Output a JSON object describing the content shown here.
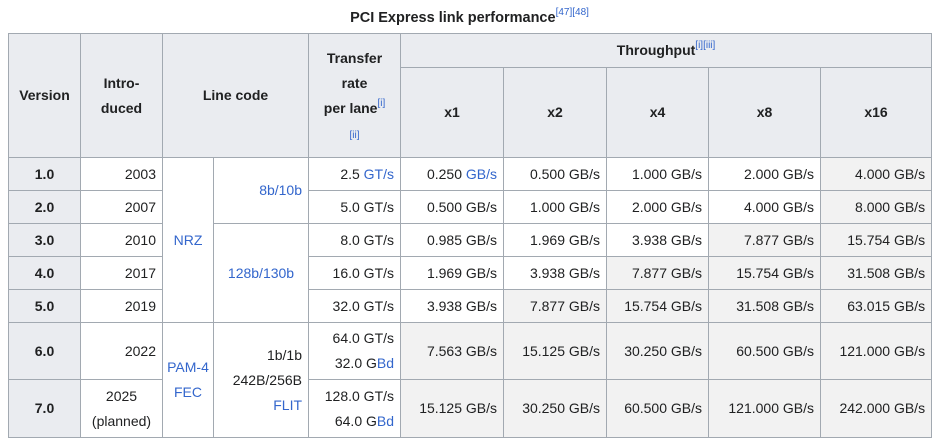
{
  "title": "PCI Express link performance",
  "title_refs": [
    "[47]",
    "[48]"
  ],
  "headers": {
    "version": "Version",
    "introduced": [
      "Intro-",
      "duced"
    ],
    "line_code": "Line code",
    "transfer_rate": [
      "Transfer",
      "rate",
      "per lane"
    ],
    "transfer_rate_refs": [
      "[i]",
      "[ii]"
    ],
    "throughput": "Throughput",
    "throughput_refs": [
      "[i]",
      "[iii]"
    ],
    "lanes": [
      "x1",
      "x2",
      "x4",
      "x8",
      "x16"
    ]
  },
  "line_codes": {
    "nrz": "NRZ",
    "pam": [
      "PAM-4",
      "FEC"
    ],
    "enc_8b10b": "8b/10b",
    "enc_128b130b": "128b/130b",
    "enc_flit": [
      "1b/1b",
      "242B/256B"
    ],
    "enc_flit_link": "FLIT"
  },
  "rows": [
    {
      "version": "1.0",
      "introduced": [
        "2003"
      ],
      "transfer_rate": [
        "2.5",
        "GT/s"
      ],
      "throughput": [
        [
          "0.250",
          "GB/s"
        ],
        [
          "0.500 GB/s"
        ],
        [
          "1.000 GB/s"
        ],
        [
          "2.000 GB/s"
        ],
        [
          "4.000 GB/s"
        ]
      ]
    },
    {
      "version": "2.0",
      "introduced": [
        "2007"
      ],
      "transfer_rate": [
        "5.0 GT/s"
      ],
      "throughput": [
        [
          "0.500 GB/s"
        ],
        [
          "1.000 GB/s"
        ],
        [
          "2.000 GB/s"
        ],
        [
          "4.000 GB/s"
        ],
        [
          "8.000 GB/s"
        ]
      ]
    },
    {
      "version": "3.0",
      "introduced": [
        "2010"
      ],
      "transfer_rate": [
        "8.0 GT/s"
      ],
      "throughput": [
        [
          "0.985 GB/s"
        ],
        [
          "1.969 GB/s"
        ],
        [
          "3.938 GB/s"
        ],
        [
          "7.877 GB/s"
        ],
        [
          "15.754 GB/s"
        ]
      ]
    },
    {
      "version": "4.0",
      "introduced": [
        "2017"
      ],
      "transfer_rate": [
        "16.0 GT/s"
      ],
      "throughput": [
        [
          "1.969 GB/s"
        ],
        [
          "3.938 GB/s"
        ],
        [
          "7.877 GB/s"
        ],
        [
          "15.754 GB/s"
        ],
        [
          "31.508 GB/s"
        ]
      ]
    },
    {
      "version": "5.0",
      "introduced": [
        "2019"
      ],
      "transfer_rate": [
        "32.0 GT/s"
      ],
      "throughput": [
        [
          "3.938 GB/s"
        ],
        [
          "7.877 GB/s"
        ],
        [
          "15.754 GB/s"
        ],
        [
          "31.508 GB/s"
        ],
        [
          "63.015 GB/s"
        ]
      ]
    },
    {
      "version": "6.0",
      "introduced": [
        "2022"
      ],
      "transfer_rate": [
        "64.0 GT/s"
      ],
      "symbol_rate": [
        "32.0 G",
        "Bd"
      ],
      "throughput": [
        [
          "7.563 GB/s"
        ],
        [
          "15.125 GB/s"
        ],
        [
          "30.250 GB/s"
        ],
        [
          "60.500 GB/s"
        ],
        [
          "121.000 GB/s"
        ]
      ]
    },
    {
      "version": "7.0",
      "introduced": [
        "2025",
        "(planned)"
      ],
      "transfer_rate": [
        "128.0 GT/s"
      ],
      "symbol_rate": [
        "64.0 G",
        "Bd"
      ],
      "throughput": [
        [
          "15.125 GB/s"
        ],
        [
          "30.250 GB/s"
        ],
        [
          "60.500 GB/s"
        ],
        [
          "121.000 GB/s"
        ],
        [
          "242.000 GB/s"
        ]
      ]
    }
  ]
}
